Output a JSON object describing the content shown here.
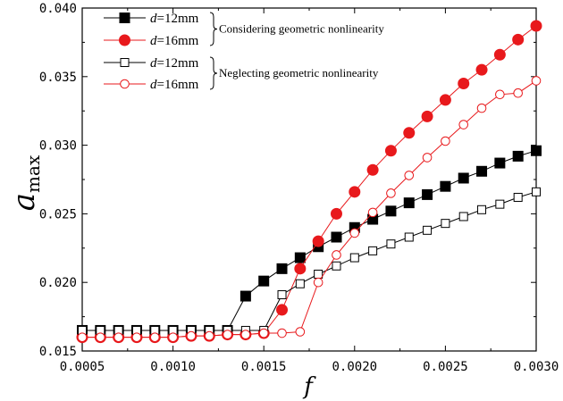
{
  "chart_data": {
    "type": "line",
    "title": "",
    "xlabel": "f",
    "ylabel": {
      "main": "a",
      "sub": "max"
    },
    "xlim": [
      0.0005,
      0.003
    ],
    "ylim": [
      0.015,
      0.04
    ],
    "xticks": [
      0.0005,
      0.001,
      0.0015,
      0.002,
      0.0025,
      0.003
    ],
    "xtick_labels": [
      "0.0005",
      "0.0010",
      "0.0015",
      "0.0020",
      "0.0025",
      "0.0030"
    ],
    "yticks": [
      0.015,
      0.02,
      0.025,
      0.03,
      0.035,
      0.04
    ],
    "ytick_labels": [
      "0.015",
      "0.020",
      "0.025",
      "0.030",
      "0.035",
      "0.040"
    ],
    "grid": false,
    "legend_position": "top-left",
    "legend_groups": [
      {
        "text": "Considering geometric nonlinearity",
        "series_indices": [
          0,
          1
        ]
      },
      {
        "text": "Neglecting geometric nonlinearity",
        "series_indices": [
          2,
          3
        ]
      }
    ],
    "x": [
      0.0005,
      0.0006,
      0.0007,
      0.0008,
      0.0009,
      0.001,
      0.0011,
      0.0012,
      0.0013,
      0.0014,
      0.0015,
      0.0016,
      0.0017,
      0.0018,
      0.0019,
      0.002,
      0.0021,
      0.0022,
      0.0023,
      0.0024,
      0.0025,
      0.0026,
      0.0027,
      0.0028,
      0.0029,
      0.003
    ],
    "series": [
      {
        "legend_var": "d",
        "legend_rest": "=12mm",
        "color": "#000000",
        "marker": "square",
        "filled": true,
        "values": [
          0.0165,
          0.0165,
          0.0165,
          0.0165,
          0.0165,
          0.0165,
          0.0165,
          0.0165,
          0.0165,
          0.019,
          0.0201,
          0.021,
          0.0218,
          0.0226,
          0.0233,
          0.024,
          0.0246,
          0.0252,
          0.0258,
          0.0264,
          0.027,
          0.0276,
          0.0281,
          0.0287,
          0.0292,
          0.0296
        ]
      },
      {
        "legend_var": "d",
        "legend_rest": "=16mm",
        "color": "#e8191c",
        "marker": "circle",
        "filled": true,
        "values": [
          0.016,
          0.016,
          0.016,
          0.016,
          0.016,
          0.016,
          0.0161,
          0.0161,
          0.0162,
          0.0162,
          0.0163,
          0.018,
          0.021,
          0.023,
          0.025,
          0.0266,
          0.0282,
          0.0296,
          0.0309,
          0.0321,
          0.0333,
          0.0345,
          0.0355,
          0.0366,
          0.0377,
          0.0387
        ]
      },
      {
        "legend_var": "d",
        "legend_rest": "=12mm",
        "color": "#000000",
        "marker": "square",
        "filled": false,
        "values": [
          0.0165,
          0.0165,
          0.0165,
          0.0165,
          0.0165,
          0.0165,
          0.0165,
          0.0165,
          0.0165,
          0.0165,
          0.0165,
          0.0191,
          0.0199,
          0.0206,
          0.0212,
          0.0218,
          0.0223,
          0.0228,
          0.0233,
          0.0238,
          0.0243,
          0.0248,
          0.0253,
          0.0257,
          0.0262,
          0.0266
        ]
      },
      {
        "legend_var": "d",
        "legend_rest": "=16mm",
        "color": "#e8191c",
        "marker": "circle",
        "filled": false,
        "values": [
          0.016,
          0.016,
          0.016,
          0.016,
          0.016,
          0.016,
          0.0161,
          0.0161,
          0.0162,
          0.0162,
          0.0163,
          0.0163,
          0.0164,
          0.02,
          0.022,
          0.0236,
          0.0251,
          0.0265,
          0.0278,
          0.0291,
          0.0303,
          0.0315,
          0.0327,
          0.0337,
          0.0338,
          0.0347
        ]
      }
    ]
  }
}
